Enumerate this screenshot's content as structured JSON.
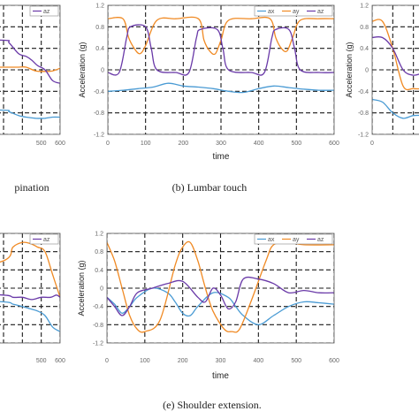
{
  "captions": {
    "a": "pination",
    "b": "(b) Lumbar touch",
    "e": "(e) Shoulder extension."
  },
  "colors": {
    "ax": "#4a9bd4",
    "ay": "#f08a24",
    "az": "#6a3aa8"
  },
  "chart_data": [
    {
      "id": "a",
      "type": "line",
      "xlabel": "",
      "ylabel": "",
      "xlim": [
        0,
        600
      ],
      "ylim": [
        -1.2,
        1.2
      ],
      "xticks": [
        500,
        600
      ],
      "yticks": [],
      "grid": true,
      "legend": {
        "placement": "top-right",
        "entries": [
          "az"
        ]
      },
      "series": [
        {
          "name": "ay",
          "x": [
            0,
            300,
            380,
            420,
            470,
            520,
            560,
            600
          ],
          "y": [
            0.05,
            0.05,
            0.05,
            0.05,
            -0.02,
            -0.03,
            -0.02,
            0.03
          ]
        },
        {
          "name": "az",
          "x": [
            0,
            300,
            330,
            380,
            420,
            450,
            480,
            520,
            560,
            600
          ],
          "y": [
            0.55,
            0.55,
            0.5,
            0.3,
            0.25,
            0.18,
            0.08,
            0.0,
            -0.2,
            -0.25
          ]
        },
        {
          "name": "ax",
          "x": [
            0,
            300,
            330,
            380,
            420,
            470,
            520,
            560,
            600
          ],
          "y": [
            -0.75,
            -0.75,
            -0.78,
            -0.85,
            -0.88,
            -0.9,
            -0.9,
            -0.88,
            -0.88
          ]
        }
      ]
    },
    {
      "id": "b",
      "type": "line",
      "xlabel": "time",
      "ylabel": "Acceleration (g)",
      "xlim": [
        0,
        600
      ],
      "ylim": [
        -1.2,
        1.2
      ],
      "xticks": [
        0,
        100,
        200,
        300,
        400,
        500,
        600
      ],
      "yticks": [
        -1.2,
        -0.8,
        -0.4,
        0,
        0.4,
        0.8,
        1.2
      ],
      "ytick_labels": [
        "-1.2",
        "-0.8",
        "-0.4",
        "0",
        "0.4",
        "0.8",
        "1.2"
      ],
      "grid": true,
      "legend": {
        "placement": "top-right",
        "entries": [
          "ax",
          "ay",
          "az"
        ]
      },
      "series": [
        {
          "name": "ax",
          "x": [
            0,
            40,
            80,
            120,
            160,
            200,
            240,
            280,
            320,
            360,
            400,
            440,
            480,
            520,
            560,
            600
          ],
          "y": [
            -0.4,
            -0.38,
            -0.35,
            -0.32,
            -0.25,
            -0.3,
            -0.32,
            -0.35,
            -0.4,
            -0.42,
            -0.35,
            -0.3,
            -0.33,
            -0.36,
            -0.38,
            -0.38
          ]
        },
        {
          "name": "ay",
          "x": [
            0,
            40,
            55,
            70,
            85,
            100,
            130,
            180,
            240,
            255,
            270,
            285,
            300,
            320,
            380,
            430,
            445,
            460,
            475,
            490,
            510,
            560,
            600
          ],
          "y": [
            0.95,
            0.95,
            0.6,
            0.4,
            0.3,
            0.45,
            0.92,
            0.95,
            0.95,
            0.55,
            0.35,
            0.3,
            0.55,
            0.92,
            0.95,
            0.95,
            0.6,
            0.4,
            0.35,
            0.6,
            0.92,
            0.95,
            0.95
          ]
        },
        {
          "name": "az",
          "x": [
            0,
            30,
            50,
            60,
            100,
            115,
            130,
            180,
            215,
            235,
            245,
            290,
            305,
            320,
            380,
            415,
            435,
            445,
            480,
            495,
            510,
            560,
            600
          ],
          "y": [
            -0.05,
            -0.05,
            0.6,
            0.8,
            0.8,
            0.4,
            0.0,
            -0.05,
            -0.05,
            0.6,
            0.75,
            0.75,
            0.4,
            0.0,
            -0.05,
            -0.05,
            0.6,
            0.75,
            0.75,
            0.4,
            0.0,
            -0.05,
            -0.05
          ]
        }
      ]
    },
    {
      "id": "c",
      "type": "line",
      "xlabel": "",
      "ylabel": "Acceleration (g)",
      "xlim": [
        0,
        600
      ],
      "ylim": [
        -1.2,
        1.2
      ],
      "xticks": [
        0
      ],
      "yticks": [
        -1.2,
        -0.8,
        -0.4,
        0,
        0.4,
        0.8,
        1.2
      ],
      "ytick_labels": [
        "-1.2",
        "-0.8",
        "-0.4",
        "0",
        "0.4",
        "0.8",
        "1.2"
      ],
      "grid": true,
      "legend": null,
      "series": [
        {
          "name": "ay",
          "x": [
            0,
            50,
            100,
            150,
            200,
            250
          ],
          "y": [
            0.9,
            0.9,
            0.4,
            -0.3,
            -0.35,
            -0.35
          ]
        },
        {
          "name": "az",
          "x": [
            0,
            50,
            100,
            150,
            200,
            250
          ],
          "y": [
            0.6,
            0.6,
            0.4,
            0.0,
            -0.1,
            -0.05
          ]
        },
        {
          "name": "ax",
          "x": [
            0,
            50,
            100,
            150,
            200,
            250
          ],
          "y": [
            -0.55,
            -0.6,
            -0.8,
            -0.9,
            -0.85,
            -0.85
          ]
        }
      ]
    },
    {
      "id": "d",
      "type": "line",
      "xlabel": "",
      "ylabel": "",
      "xlim": [
        0,
        600
      ],
      "ylim": [
        -1.2,
        1.2
      ],
      "xticks": [
        500,
        600
      ],
      "yticks": [],
      "grid": true,
      "legend": {
        "placement": "top-right",
        "entries": [
          "az"
        ]
      },
      "series": [
        {
          "name": "ay",
          "x": [
            0,
            300,
            350,
            400,
            440,
            480,
            520,
            560,
            600
          ],
          "y": [
            0.3,
            0.6,
            0.9,
            1.0,
            0.98,
            0.9,
            0.8,
            0.3,
            -0.2
          ]
        },
        {
          "name": "az",
          "x": [
            0,
            300,
            350,
            400,
            450,
            500,
            550,
            580,
            600
          ],
          "y": [
            -0.1,
            -0.15,
            -0.2,
            -0.2,
            -0.25,
            -0.2,
            -0.2,
            -0.15,
            -0.2
          ]
        },
        {
          "name": "ax",
          "x": [
            0,
            300,
            350,
            400,
            440,
            480,
            520,
            560,
            600
          ],
          "y": [
            -0.25,
            -0.3,
            -0.35,
            -0.4,
            -0.45,
            -0.5,
            -0.6,
            -0.85,
            -0.95
          ]
        }
      ]
    },
    {
      "id": "e",
      "type": "line",
      "xlabel": "time",
      "ylabel": "Acceleration (g)",
      "xlim": [
        0,
        600
      ],
      "ylim": [
        -1.2,
        1.2
      ],
      "xticks": [
        0,
        100,
        200,
        300,
        400,
        500,
        600
      ],
      "yticks": [
        -1.2,
        -0.8,
        -0.4,
        0,
        0.4,
        0.8,
        1.2
      ],
      "ytick_labels": [
        "-1.2",
        "-0.8",
        "-0.4",
        "0",
        "0.4",
        "0.8",
        "1.2"
      ],
      "grid": true,
      "legend": {
        "placement": "top-right",
        "entries": [
          "ax",
          "ay",
          "az"
        ]
      },
      "series": [
        {
          "name": "ax",
          "x": [
            0,
            20,
            40,
            60,
            80,
            120,
            160,
            180,
            200,
            220,
            240,
            280,
            320,
            340,
            360,
            400,
            440,
            480,
            520,
            560,
            600
          ],
          "y": [
            -0.2,
            -0.35,
            -0.55,
            -0.4,
            -0.2,
            0.0,
            -0.1,
            -0.3,
            -0.55,
            -0.6,
            -0.4,
            -0.1,
            -0.2,
            -0.4,
            -0.6,
            -0.8,
            -0.6,
            -0.4,
            -0.3,
            -0.32,
            -0.35
          ]
        },
        {
          "name": "ay",
          "x": [
            0,
            20,
            40,
            60,
            80,
            100,
            140,
            180,
            200,
            220,
            240,
            260,
            280,
            310,
            330,
            350,
            380,
            420,
            440,
            480,
            520,
            600
          ],
          "y": [
            1.0,
            0.6,
            0.0,
            -0.6,
            -0.9,
            -0.95,
            -0.7,
            0.5,
            0.9,
            1.0,
            0.6,
            0.0,
            -0.5,
            -0.9,
            -0.95,
            -0.9,
            -0.3,
            0.6,
            0.95,
            1.0,
            0.95,
            0.95
          ]
        },
        {
          "name": "az",
          "x": [
            0,
            20,
            40,
            60,
            80,
            120,
            160,
            200,
            240,
            260,
            280,
            300,
            320,
            340,
            360,
            400,
            440,
            480,
            520,
            560,
            600
          ],
          "y": [
            -0.2,
            -0.4,
            -0.6,
            -0.4,
            -0.1,
            0.0,
            0.1,
            0.15,
            -0.2,
            -0.3,
            0.0,
            -0.15,
            -0.45,
            -0.3,
            0.2,
            0.2,
            0.1,
            -0.1,
            -0.05,
            -0.1,
            -0.1
          ]
        }
      ]
    }
  ]
}
